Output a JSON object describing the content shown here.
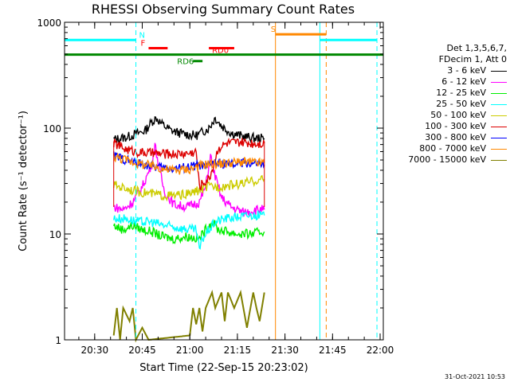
{
  "chart_data": {
    "type": "line",
    "title": "RHESSI Observing Summary Count Rates",
    "xlabel": "Start Time (22-Sep-15 20:23:02)",
    "ylabel": "Count Rate (s⁻¹ detector⁻¹)",
    "yscale": "log",
    "ylim": [
      1,
      1000
    ],
    "xlim_min": [
      -2.5,
      98
    ],
    "xticks": [
      {
        "t": 7,
        "label": "20:30"
      },
      {
        "t": 22,
        "label": "20:45"
      },
      {
        "t": 37,
        "label": "21:00"
      },
      {
        "t": 52,
        "label": "21:15"
      },
      {
        "t": 67,
        "label": "21:30"
      },
      {
        "t": 82,
        "label": "21:45"
      },
      {
        "t": 97,
        "label": "22:00"
      }
    ],
    "yticks": [
      {
        "v": 1,
        "label": "1"
      },
      {
        "v": 10,
        "label": "10"
      },
      {
        "v": 100,
        "label": "100"
      },
      {
        "v": 1000,
        "label": "1000"
      }
    ],
    "legend": {
      "header": [
        "Det 1,3,5,6,7,",
        "FDecim 1, Att 0"
      ],
      "placement": "right"
    },
    "series": [
      {
        "name": "3 - 6 keV",
        "color": "#000000",
        "points": [
          [
            13,
            78
          ],
          [
            17,
            82
          ],
          [
            20,
            88
          ],
          [
            23,
            95
          ],
          [
            25,
            115
          ],
          [
            26.5,
            125
          ],
          [
            28,
            110
          ],
          [
            31,
            95
          ],
          [
            35,
            88
          ],
          [
            39,
            85
          ],
          [
            43,
            100
          ],
          [
            45,
            125
          ],
          [
            47,
            105
          ],
          [
            50,
            90
          ],
          [
            54,
            83
          ],
          [
            58,
            80
          ],
          [
            60.5,
            80
          ]
        ]
      },
      {
        "name": "6 - 12 keV",
        "color": "#ff00ff",
        "points": [
          [
            13,
            18
          ],
          [
            16,
            17
          ],
          [
            19,
            20
          ],
          [
            22,
            28
          ],
          [
            25,
            45
          ],
          [
            26,
            70
          ],
          [
            27.5,
            40
          ],
          [
            29,
            25
          ],
          [
            32,
            19
          ],
          [
            36,
            18
          ],
          [
            40,
            20
          ],
          [
            42,
            28
          ],
          [
            43.5,
            55
          ],
          [
            45,
            35
          ],
          [
            47,
            22
          ],
          [
            50,
            18
          ],
          [
            54,
            16
          ],
          [
            58,
            17
          ],
          [
            60.5,
            17
          ]
        ]
      },
      {
        "name": "12 - 25 keV",
        "color": "#00ee00",
        "points": [
          [
            13,
            12
          ],
          [
            16,
            11
          ],
          [
            19,
            12
          ],
          [
            22,
            11
          ],
          [
            25,
            10.5
          ],
          [
            28,
            9.5
          ],
          [
            32,
            9
          ],
          [
            36,
            9.5
          ],
          [
            40,
            9
          ],
          [
            42,
            11
          ],
          [
            44,
            13
          ],
          [
            46,
            11
          ],
          [
            49,
            10.5
          ],
          [
            52,
            10
          ],
          [
            56,
            10
          ],
          [
            60.5,
            10.5
          ]
        ]
      },
      {
        "name": "25 - 50 keV",
        "color": "#00ffff",
        "points": [
          [
            13,
            14
          ],
          [
            17,
            14
          ],
          [
            21,
            13
          ],
          [
            25,
            13
          ],
          [
            29,
            12
          ],
          [
            33,
            11.5
          ],
          [
            37,
            11
          ],
          [
            39,
            11
          ],
          [
            40,
            7
          ],
          [
            41,
            9
          ],
          [
            43,
            11
          ],
          [
            45,
            13
          ],
          [
            48,
            14
          ],
          [
            52,
            14.5
          ],
          [
            56,
            15
          ],
          [
            60.5,
            15
          ]
        ]
      },
      {
        "name": "50 - 100 keV",
        "color": "#cccc00",
        "points": [
          [
            13,
            29
          ],
          [
            17,
            27
          ],
          [
            21,
            25
          ],
          [
            25,
            24
          ],
          [
            29,
            23
          ],
          [
            33,
            23
          ],
          [
            37,
            24
          ],
          [
            40,
            26
          ],
          [
            43,
            28
          ],
          [
            46,
            28
          ],
          [
            50,
            29
          ],
          [
            54,
            30
          ],
          [
            58,
            32
          ],
          [
            60.5,
            33
          ]
        ]
      },
      {
        "name": "100 - 300 keV",
        "color": "#dd0000",
        "points": [
          [
            13,
            72
          ],
          [
            17,
            63
          ],
          [
            21,
            59
          ],
          [
            25,
            58
          ],
          [
            29,
            57
          ],
          [
            33,
            57
          ],
          [
            37,
            58
          ],
          [
            39,
            60
          ],
          [
            40,
            28
          ],
          [
            41,
            30
          ],
          [
            43,
            33
          ],
          [
            44,
            40
          ],
          [
            46,
            65
          ],
          [
            49,
            72
          ],
          [
            53,
            73
          ],
          [
            57,
            72
          ],
          [
            60.5,
            72
          ]
        ]
      },
      {
        "name": "300 - 800 keV",
        "color": "#0000ff",
        "points": [
          [
            13,
            55
          ],
          [
            17,
            50
          ],
          [
            21,
            46
          ],
          [
            25,
            44
          ],
          [
            29,
            42
          ],
          [
            33,
            42
          ],
          [
            37,
            43
          ],
          [
            40,
            45
          ],
          [
            42,
            42
          ],
          [
            44,
            48
          ],
          [
            46,
            46
          ],
          [
            50,
            45
          ],
          [
            54,
            47
          ],
          [
            58,
            46
          ],
          [
            60.5,
            45
          ]
        ]
      },
      {
        "name": "800 - 7000 keV",
        "color": "#ff8800",
        "points": [
          [
            13,
            54
          ],
          [
            17,
            50
          ],
          [
            21,
            46
          ],
          [
            25,
            44
          ],
          [
            29,
            41
          ],
          [
            33,
            40
          ],
          [
            37,
            41
          ],
          [
            40,
            44
          ],
          [
            43,
            46
          ],
          [
            46,
            46
          ],
          [
            50,
            47
          ],
          [
            54,
            48
          ],
          [
            58,
            47
          ],
          [
            60.5,
            47
          ]
        ]
      },
      {
        "name": "7000 - 15000 keV",
        "color": "#808000",
        "points": [
          [
            13,
            1.1
          ],
          [
            14,
            2
          ],
          [
            15,
            1
          ],
          [
            16,
            2
          ],
          [
            18,
            1.5
          ],
          [
            19,
            2
          ],
          [
            20,
            1
          ],
          [
            22,
            1.3
          ],
          [
            24,
            1
          ],
          [
            37,
            1.1
          ],
          [
            38,
            2
          ],
          [
            39,
            1.4
          ],
          [
            40,
            2
          ],
          [
            41,
            1.2
          ],
          [
            42,
            2
          ],
          [
            44,
            2.8
          ],
          [
            45,
            2
          ],
          [
            47,
            2.8
          ],
          [
            48,
            1.5
          ],
          [
            49,
            2.8
          ],
          [
            51,
            2
          ],
          [
            53,
            2.8
          ],
          [
            55,
            1.3
          ],
          [
            57,
            2.8
          ],
          [
            58,
            2
          ],
          [
            59,
            1.5
          ],
          [
            60.5,
            2.8
          ]
        ]
      }
    ],
    "markers": {
      "vlines": [
        {
          "t": -2.5,
          "color": "#00ffff",
          "dash": false
        },
        {
          "t": 20,
          "color": "#00ffff",
          "dash": true
        },
        {
          "t": 64,
          "color": "#ff8800",
          "dash": false
        },
        {
          "t": 78,
          "color": "#00ffff",
          "dash": false
        },
        {
          "t": 80,
          "color": "#ff8800",
          "dash": true
        },
        {
          "t": 96,
          "color": "#00ffff",
          "dash": true
        }
      ],
      "bars": [
        {
          "label": "N",
          "color": "#00ffff",
          "t0": -2.5,
          "t1": 20,
          "y": 680,
          "label_t": 21
        },
        {
          "label": "N",
          "color": "#00ffff",
          "t0": 78,
          "t1": 96,
          "y": 680
        },
        {
          "label": "S",
          "color": "#ff8800",
          "t0": 64,
          "t1": 80,
          "y": 770,
          "label_t": 62.5
        },
        {
          "label": "F",
          "color": "#ff0000",
          "t0": 24,
          "t1": 30,
          "y": 570,
          "label_t": 21.5
        },
        {
          "label": "RD0",
          "color": "#ff0000",
          "t0": 43,
          "t1": 51,
          "y": 570,
          "label_t": 44
        },
        {
          "label": "RD6",
          "color": "#008800",
          "t0": 38,
          "t1": 41,
          "y": 430,
          "label_t": 33
        },
        {
          "label": "",
          "color": "#008800",
          "t0": -2.5,
          "t1": 98,
          "y": 495
        }
      ],
      "data_edges": {
        "color": "#dd0000",
        "t0": 13,
        "t1": 60.5,
        "y0": 18,
        "y1": 75
      }
    }
  },
  "footer": {
    "date": "31-Oct-2021 10:53"
  }
}
